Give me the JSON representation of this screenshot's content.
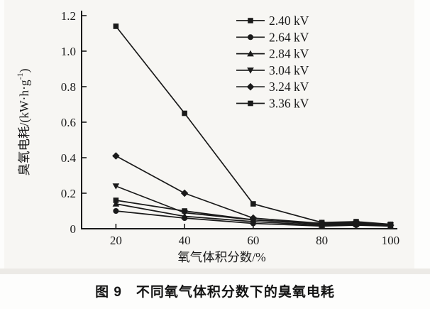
{
  "caption": "图 9　不同氧气体积分数下的臭氧电耗",
  "colors": {
    "line": "#1a1a1a",
    "text": "#1a1a1a",
    "background": "#f7f6f3"
  },
  "chart_data": {
    "type": "line",
    "title": "",
    "xlabel": "氧气体积分数/%",
    "ylabel": "臭氧电耗/(kW·h·g⁻¹)",
    "ylabel_parts": {
      "base": "臭氧电耗/(kW·h·g",
      "sup": "-1",
      "close": ")"
    },
    "xlim": [
      10,
      102
    ],
    "ylim": [
      0,
      1.2
    ],
    "xticks": [
      20,
      40,
      60,
      80,
      100
    ],
    "xtick_labels": [
      "20",
      "40",
      "60",
      "80",
      "100"
    ],
    "yticks": [
      0,
      0.2,
      0.4,
      0.6,
      0.8,
      1.0,
      1.2
    ],
    "ytick_labels": [
      "0",
      "0.2",
      "0.4",
      "0.6",
      "0.8",
      "1.0",
      "1.2"
    ],
    "grid": false,
    "legend_position": "top-right",
    "x": [
      20,
      40,
      60,
      80,
      90,
      100
    ],
    "series": [
      {
        "name": "2.40 kV",
        "marker": "square",
        "values": [
          [
            20,
            0.16
          ],
          [
            40,
            0.1
          ],
          [
            60,
            0.05
          ],
          [
            80,
            0.03
          ],
          [
            90,
            0.03
          ],
          [
            100,
            0.02
          ]
        ]
      },
      {
        "name": "2.64 kV",
        "marker": "circle",
        "values": [
          [
            20,
            0.1
          ],
          [
            40,
            0.06
          ],
          [
            60,
            0.03
          ],
          [
            80,
            0.015
          ],
          [
            90,
            0.02
          ],
          [
            100,
            0.015
          ]
        ]
      },
      {
        "name": "2.84 kV",
        "marker": "triangle-up",
        "values": [
          [
            20,
            0.14
          ],
          [
            40,
            0.07
          ],
          [
            60,
            0.04
          ],
          [
            80,
            0.02
          ],
          [
            90,
            0.025
          ],
          [
            100,
            0.015
          ]
        ]
      },
      {
        "name": "3.04 kV",
        "marker": "triangle-down",
        "values": [
          [
            20,
            0.24
          ],
          [
            40,
            0.09
          ],
          [
            60,
            0.05
          ],
          [
            80,
            0.025
          ],
          [
            90,
            0.03
          ],
          [
            100,
            0.02
          ]
        ]
      },
      {
        "name": "3.24 kV",
        "marker": "diamond",
        "values": [
          [
            20,
            0.41
          ],
          [
            40,
            0.2
          ],
          [
            60,
            0.06
          ],
          [
            80,
            0.03
          ],
          [
            90,
            0.035
          ],
          [
            100,
            0.02
          ]
        ]
      },
      {
        "name": "3.36 kV",
        "marker": "square",
        "values": [
          [
            20,
            1.14
          ],
          [
            40,
            0.65
          ],
          [
            60,
            0.14
          ],
          [
            80,
            0.035
          ],
          [
            90,
            0.04
          ],
          [
            100,
            0.025
          ]
        ]
      }
    ]
  }
}
